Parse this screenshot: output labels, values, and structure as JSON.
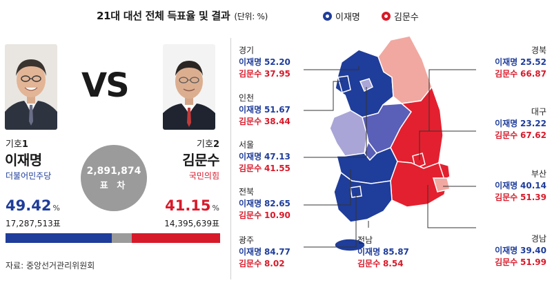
{
  "header": {
    "title": "21대 대선 전체 득표율 및 결과",
    "unit": "(단위: %)"
  },
  "legend": [
    {
      "label": "이재명",
      "color": "#1f3d9a"
    },
    {
      "label": "김문수",
      "color": "#d71a2a"
    }
  ],
  "vs_label": "VS",
  "candidates": {
    "lee": {
      "symbol_prefix": "기호",
      "symbol_number": "1",
      "name": "이재명",
      "party": "더불어민주당",
      "percent": "49.42",
      "percent_unit": "%",
      "votes": "17,287,513표",
      "color": "#1f3d9a",
      "share": 49.42
    },
    "kim": {
      "symbol_prefix": "기호",
      "symbol_number": "2",
      "name": "김문수",
      "party": "국민의힘",
      "percent": "41.15",
      "percent_unit": "%",
      "votes": "14,395,639표",
      "color": "#d71a2a",
      "share": 41.15
    }
  },
  "gap": {
    "number": "2,891,874",
    "label": "표 차"
  },
  "source": "자료: 중앙선거관리위원회",
  "regions": {
    "gyeonggi": {
      "name": "경기",
      "lee_name": "이재명",
      "lee": "52.20",
      "kim_name": "김문수",
      "kim": "37.95"
    },
    "incheon": {
      "name": "인천",
      "lee_name": "이재명",
      "lee": "51.67",
      "kim_name": "김문수",
      "kim": "38.44"
    },
    "seoul": {
      "name": "서울",
      "lee_name": "이재명",
      "lee": "47.13",
      "kim_name": "김문수",
      "kim": "41.55"
    },
    "jeonbuk": {
      "name": "전북",
      "lee_name": "이재명",
      "lee": "82.65",
      "kim_name": "김문수",
      "kim": "10.90"
    },
    "gwangju": {
      "name": "광주",
      "lee_name": "이재명",
      "lee": "84.77",
      "kim_name": "김문수",
      "kim": "8.02"
    },
    "jeonnam": {
      "name": "전남",
      "lee_name": "이재명",
      "lee": "85.87",
      "kim_name": "김문수",
      "kim": "8.54"
    },
    "gyeongbuk": {
      "name": "경북",
      "lee_name": "이재명",
      "lee": "25.52",
      "kim_name": "김문수",
      "kim": "66.87"
    },
    "daegu": {
      "name": "대구",
      "lee_name": "이재명",
      "lee": "23.22",
      "kim_name": "김문수",
      "kim": "67.62"
    },
    "busan": {
      "name": "부산",
      "lee_name": "이재명",
      "lee": "40.14",
      "kim_name": "김문수",
      "kim": "51.39"
    },
    "gyeongnam": {
      "name": "경남",
      "lee_name": "이재명",
      "lee": "39.40",
      "kim_name": "김문수",
      "kim": "51.99"
    }
  },
  "map_colors": {
    "lee_strong": "#1f3d9a",
    "lee_mid": "#5a5fb8",
    "lee_light": "#a9a5d6",
    "kim_strong": "#e3202f",
    "kim_light": "#f1a8a0"
  }
}
